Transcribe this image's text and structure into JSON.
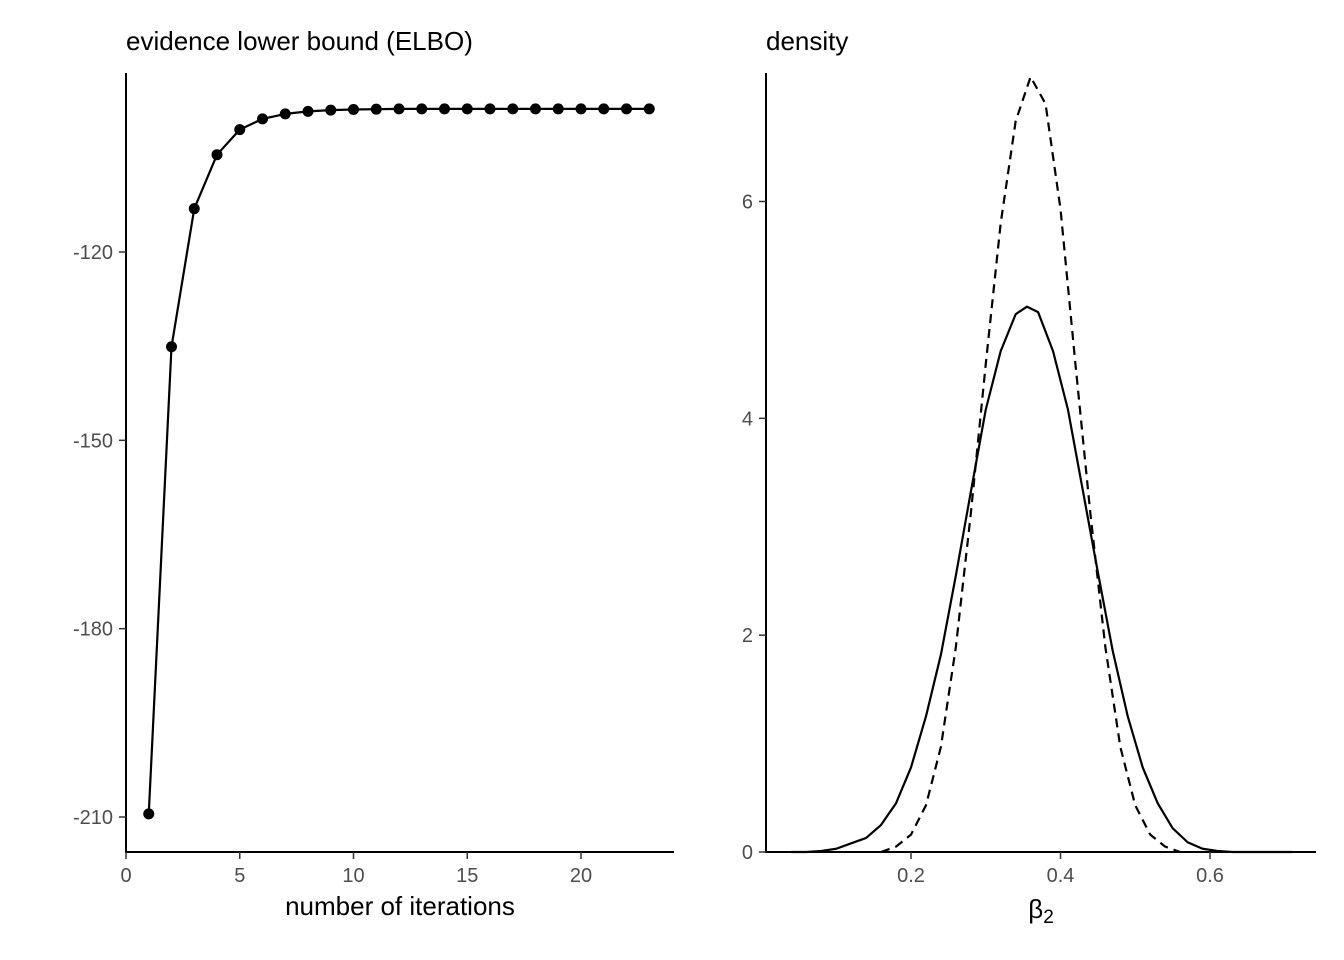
{
  "chart_data": [
    {
      "type": "line",
      "title": "evidence lower bound (ELBO)",
      "xlabel": "number of iterations",
      "ylabel": "",
      "xlim": [
        0,
        23
      ],
      "ylim": [
        -210,
        -100
      ],
      "xticks": [
        0,
        5,
        10,
        15,
        20
      ],
      "xtick_labels": [
        "0",
        "5",
        "10",
        "15",
        "20"
      ],
      "yticks": [
        -210,
        -180,
        -150,
        -120
      ],
      "ytick_labels": [
        "-210",
        "-180",
        "-150",
        "-120"
      ],
      "grid": false,
      "markers": true,
      "series": [
        {
          "x": [
            1,
            2,
            3,
            4,
            5,
            6,
            7,
            8,
            9,
            10,
            11,
            12,
            13,
            14,
            15,
            16,
            17,
            18,
            19,
            20,
            21,
            22,
            23
          ],
          "values": [
            -209.5,
            -135.1,
            -113.1,
            -104.5,
            -100.5,
            -98.8,
            -98.0,
            -97.6,
            -97.4,
            -97.3,
            -97.25,
            -97.2,
            -97.2,
            -97.2,
            -97.2,
            -97.2,
            -97.2,
            -97.2,
            -97.2,
            -97.2,
            -97.2,
            -97.2,
            -97.2
          ]
        }
      ]
    },
    {
      "type": "line",
      "title": "density",
      "xlabel_base": "β",
      "xlabel_sub": "2",
      "ylabel": "",
      "xlim": [
        0.04,
        0.71
      ],
      "ylim": [
        0,
        7.2
      ],
      "xticks": [
        0.2,
        0.4,
        0.6
      ],
      "xtick_labels": [
        "0.2",
        "0.4",
        "0.6"
      ],
      "yticks": [
        0,
        2,
        4,
        6
      ],
      "ytick_labels": [
        "0",
        "2",
        "4",
        "6"
      ],
      "grid": false,
      "series": [
        {
          "line_style": "solid",
          "x": [
            0.04,
            0.06,
            0.08,
            0.1,
            0.12,
            0.14,
            0.16,
            0.18,
            0.2,
            0.22,
            0.24,
            0.26,
            0.28,
            0.3,
            0.32,
            0.34,
            0.355,
            0.37,
            0.39,
            0.41,
            0.43,
            0.45,
            0.47,
            0.49,
            0.51,
            0.53,
            0.55,
            0.57,
            0.59,
            0.61,
            0.63,
            0.65,
            0.67,
            0.69,
            0.71
          ],
          "values": [
            0.0,
            0.0,
            0.01,
            0.03,
            0.08,
            0.13,
            0.25,
            0.45,
            0.78,
            1.25,
            1.82,
            2.55,
            3.32,
            4.08,
            4.62,
            4.96,
            5.03,
            4.98,
            4.62,
            4.08,
            3.33,
            2.58,
            1.85,
            1.25,
            0.78,
            0.45,
            0.22,
            0.09,
            0.03,
            0.01,
            0.0,
            0.0,
            0.0,
            0.0,
            0.0
          ]
        },
        {
          "line_style": "dashed",
          "x": [
            0.16,
            0.18,
            0.2,
            0.22,
            0.24,
            0.26,
            0.28,
            0.3,
            0.32,
            0.34,
            0.36,
            0.38,
            0.4,
            0.42,
            0.44,
            0.46,
            0.48,
            0.5,
            0.52,
            0.54,
            0.56
          ],
          "values": [
            0.0,
            0.05,
            0.16,
            0.43,
            0.97,
            1.89,
            3.12,
            4.5,
            5.8,
            6.74,
            7.15,
            6.9,
            5.93,
            4.5,
            3.12,
            1.89,
            0.97,
            0.43,
            0.16,
            0.05,
            0.0
          ]
        }
      ]
    }
  ]
}
